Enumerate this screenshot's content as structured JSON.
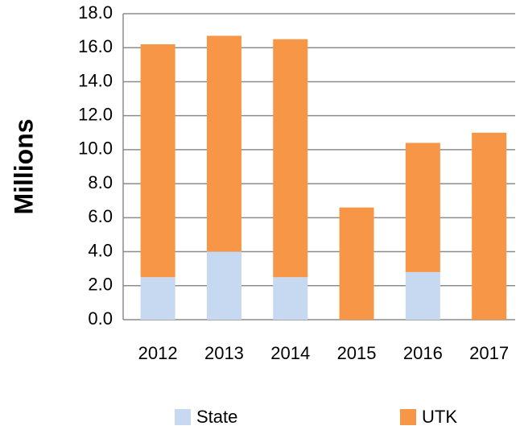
{
  "chart_data": {
    "type": "stacked_bar",
    "y_label": "Millions",
    "categories": [
      "2012",
      "2013",
      "2014",
      "2015",
      "2016",
      "2017"
    ],
    "series": [
      {
        "name": "State",
        "color": "#c6d9f1",
        "values": [
          2.5,
          4.0,
          2.5,
          0,
          2.8,
          0
        ]
      },
      {
        "name": "UTK",
        "color": "#f79646",
        "values": [
          13.7,
          12.7,
          14.0,
          6.6,
          7.6,
          11.0
        ]
      }
    ],
    "ylim": [
      0,
      18
    ],
    "yticks": [
      {
        "value": 0,
        "label": "0.0"
      },
      {
        "value": 2,
        "label": "2.0"
      },
      {
        "value": 4,
        "label": "4.0"
      },
      {
        "value": 6,
        "label": "6.0"
      },
      {
        "value": 8,
        "label": "8.0"
      },
      {
        "value": 10,
        "label": "10.0"
      },
      {
        "value": 12,
        "label": "12.0"
      },
      {
        "value": 14,
        "label": "14.0"
      },
      {
        "value": 16,
        "label": "16.0"
      },
      {
        "value": 18,
        "label": "18.0"
      }
    ],
    "grid": true,
    "legend": "bottom"
  }
}
